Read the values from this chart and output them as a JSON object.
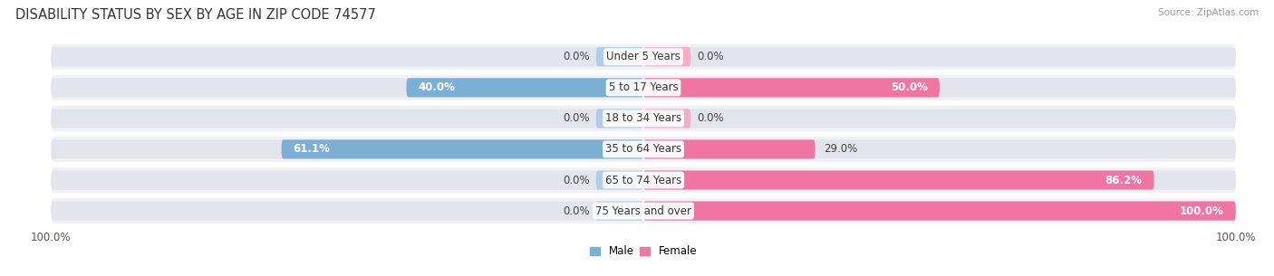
{
  "title": "DISABILITY STATUS BY SEX BY AGE IN ZIP CODE 74577",
  "source": "Source: ZipAtlas.com",
  "categories": [
    "Under 5 Years",
    "5 to 17 Years",
    "18 to 34 Years",
    "35 to 64 Years",
    "65 to 74 Years",
    "75 Years and over"
  ],
  "male_values": [
    0.0,
    40.0,
    0.0,
    61.1,
    0.0,
    0.0
  ],
  "female_values": [
    0.0,
    50.0,
    0.0,
    29.0,
    86.2,
    100.0
  ],
  "male_color": "#7bafd4",
  "male_color_light": "#aecde8",
  "female_color": "#f075a0",
  "female_color_light": "#f5adc8",
  "bar_bg_color": "#e4e4ec",
  "row_bg_color": "#f0f0f5",
  "row_sep_color": "#ffffff",
  "max_value": 100.0,
  "title_fontsize": 10.5,
  "label_fontsize": 8.5,
  "tick_fontsize": 8.5,
  "category_fontsize": 8.5
}
